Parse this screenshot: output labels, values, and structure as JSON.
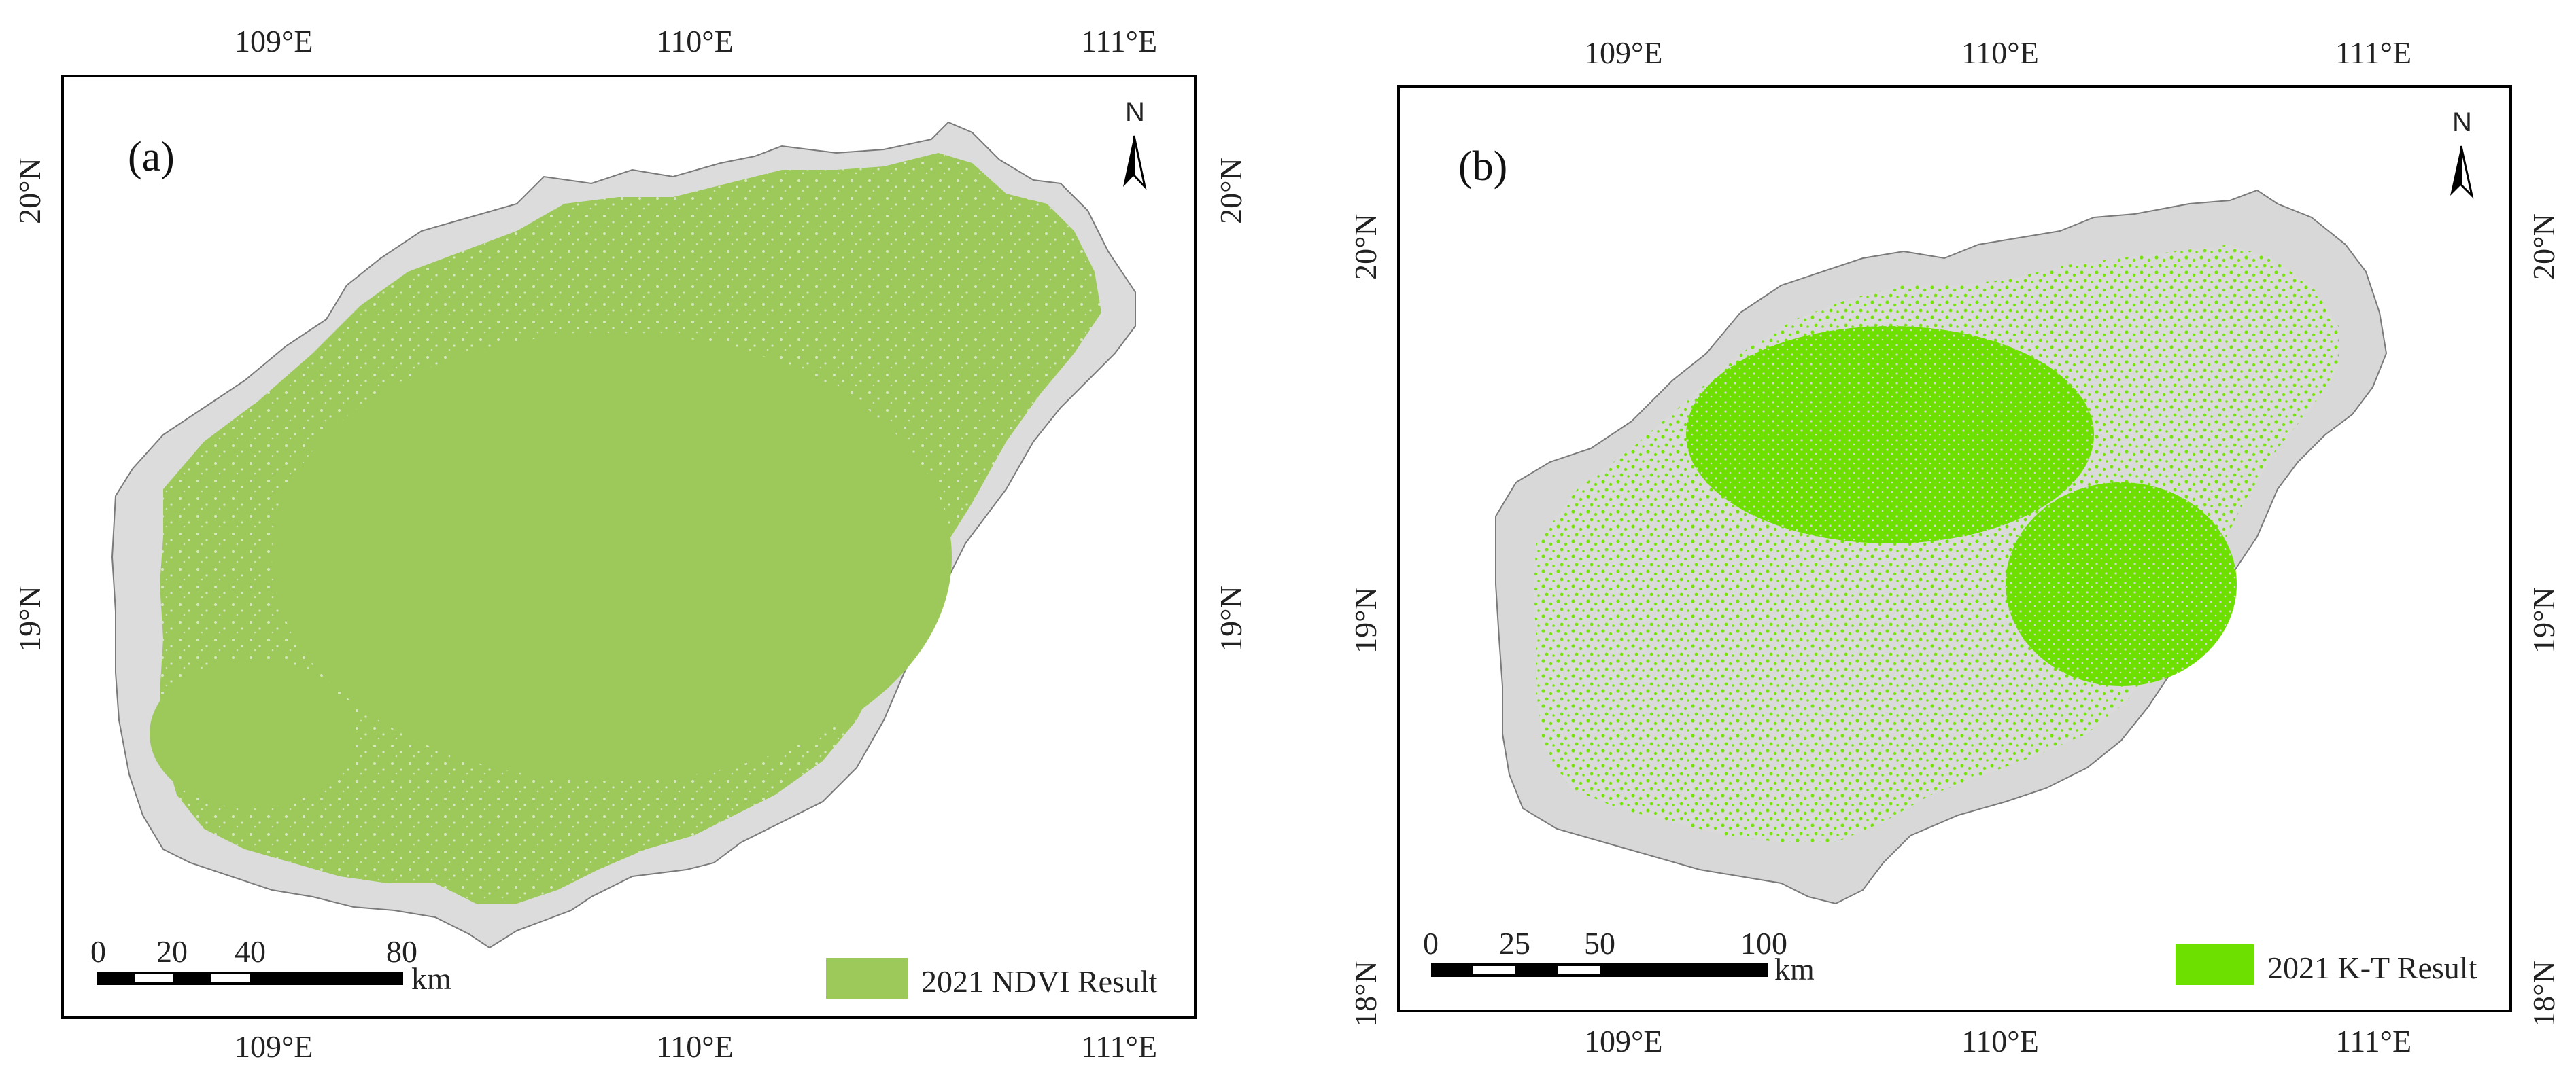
{
  "panels": [
    {
      "id": "a",
      "letter": "(a)",
      "legend": "2021 NDVI Result",
      "colors": {
        "vegetation": "#9cc95a",
        "land": "#dcdcdc",
        "outline": "#7a7a7a"
      },
      "top_ticks": [
        "109°E",
        "110°E",
        "111°E"
      ],
      "bottom_ticks": [
        "109°E",
        "110°E",
        "111°E"
      ],
      "left_ticks": [
        "20°N",
        "19°N"
      ],
      "right_ticks": [
        "20°N",
        "19°N"
      ],
      "scalebar": {
        "ticks": [
          "0",
          "20",
          "40",
          "80"
        ],
        "unit": "km"
      },
      "north": "N"
    },
    {
      "id": "b",
      "letter": "(b)",
      "legend": "2021 K-T Result",
      "colors": {
        "vegetation": "#6ee000",
        "land": "#d8d8d8",
        "outline": "#7a7a7a"
      },
      "top_ticks": [
        "109°E",
        "110°E",
        "111°E"
      ],
      "bottom_ticks": [
        "109°E",
        "110°E",
        "111°E"
      ],
      "left_ticks": [
        "20°N",
        "19°N",
        "18°N"
      ],
      "right_ticks": [
        "20°N",
        "19°N",
        "18°N"
      ],
      "scalebar": {
        "ticks": [
          "0",
          "25",
          "50",
          "100"
        ],
        "unit": "km"
      },
      "north": "N"
    }
  ]
}
